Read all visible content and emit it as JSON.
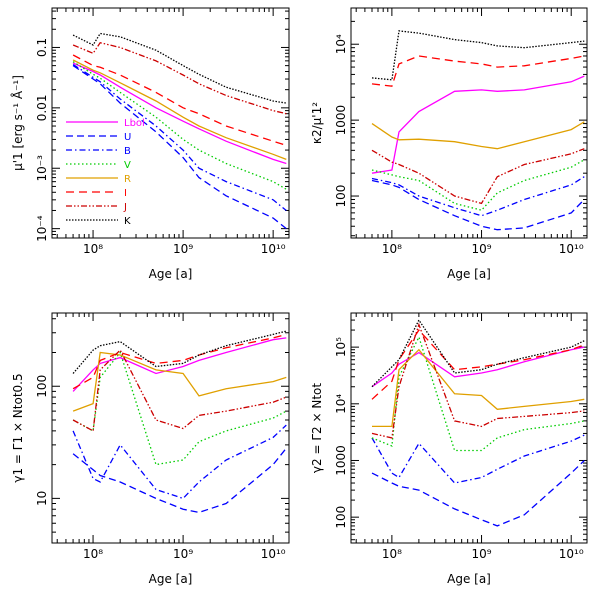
{
  "figure": {
    "series_styles": [
      {
        "name": "L_bol",
        "color": "#ff00ff",
        "dash": ""
      },
      {
        "name": "U",
        "color": "#0000ff",
        "dash": "7,4"
      },
      {
        "name": "B",
        "color": "#0000ff",
        "dash": "6,3,1.5,3"
      },
      {
        "name": "V",
        "color": "#00cc00",
        "dash": "1.5,2.5"
      },
      {
        "name": "R",
        "color": "#e0a000",
        "dash": ""
      },
      {
        "name": "I",
        "color": "#ff0000",
        "dash": "8,5"
      },
      {
        "name": "J",
        "color": "#cc0000",
        "dash": "6,2,1.5,2,1.5,2"
      },
      {
        "name": "K",
        "color": "#000000",
        "dash": "1.5,1.5"
      }
    ],
    "legend": {
      "labels": [
        "L_bol",
        "U",
        "B",
        "V",
        "R",
        "I",
        "J",
        "K"
      ],
      "label_text": [
        "Lbol",
        "U",
        "B",
        "V",
        "R",
        "I",
        "J",
        "K"
      ]
    }
  },
  "chart_data": [
    {
      "type": "line",
      "panel": "top-left",
      "xlabel": "Age [a]",
      "ylabel": "μ'1 [erg s⁻¹ Å⁻¹]",
      "xscale": "log",
      "yscale": "log",
      "xlim": [
        35000000.0,
        15000000000.0
      ],
      "ylim": [
        7e-05,
        0.45
      ],
      "x_ticklabels": [
        "10⁸",
        "10⁹",
        "10¹⁰"
      ],
      "y_ticklabels": [
        "10⁻⁴",
        "10⁻³",
        "0.01",
        "0.1"
      ],
      "x": [
        60000000.0,
        100000000.0,
        120000000.0,
        200000000.0,
        500000000.0,
        1000000000.0,
        1500000000.0,
        3000000000.0,
        10000000000.0,
        14000000000.0
      ],
      "series": [
        {
          "name": "L_bol",
          "values": [
            0.055,
            0.04,
            0.035,
            0.022,
            0.01,
            0.006,
            0.0045,
            0.0028,
            0.0014,
            0.0012
          ]
        },
        {
          "name": "U",
          "values": [
            0.05,
            0.03,
            0.025,
            0.012,
            0.004,
            0.0015,
            0.0007,
            0.00035,
            0.00015,
            0.0001
          ]
        },
        {
          "name": "B",
          "values": [
            0.052,
            0.032,
            0.027,
            0.014,
            0.005,
            0.002,
            0.001,
            0.0006,
            0.0003,
            0.0002
          ]
        },
        {
          "name": "V",
          "values": [
            0.058,
            0.036,
            0.031,
            0.018,
            0.007,
            0.003,
            0.002,
            0.0012,
            0.0006,
            0.00045
          ]
        },
        {
          "name": "R",
          "values": [
            0.062,
            0.042,
            0.038,
            0.026,
            0.013,
            0.007,
            0.005,
            0.0032,
            0.0017,
            0.0014
          ]
        },
        {
          "name": "I",
          "values": [
            0.075,
            0.05,
            0.047,
            0.035,
            0.018,
            0.01,
            0.008,
            0.005,
            0.0028,
            0.0024
          ]
        },
        {
          "name": "J",
          "values": [
            0.11,
            0.08,
            0.12,
            0.1,
            0.06,
            0.035,
            0.025,
            0.016,
            0.009,
            0.008
          ]
        },
        {
          "name": "K",
          "values": [
            0.16,
            0.11,
            0.17,
            0.15,
            0.09,
            0.05,
            0.036,
            0.022,
            0.013,
            0.012
          ]
        }
      ]
    },
    {
      "type": "line",
      "panel": "top-right",
      "xlabel": "Age [a]",
      "ylabel": "κ2/μ'1²",
      "xscale": "log",
      "yscale": "log",
      "xlim": [
        35000000.0,
        15000000000.0
      ],
      "ylim": [
        28,
        30000
      ],
      "x_ticklabels": [
        "10⁸",
        "10⁹",
        "10¹⁰"
      ],
      "y_ticklabels": [
        "100",
        "1000",
        "10⁴"
      ],
      "x": [
        60000000.0,
        100000000.0,
        120000000.0,
        200000000.0,
        500000000.0,
        1000000000.0,
        1500000000.0,
        3000000000.0,
        10000000000.0,
        14000000000.0
      ],
      "series": [
        {
          "name": "L_bol",
          "values": [
            200,
            220,
            700,
            1300,
            2400,
            2500,
            2400,
            2500,
            3200,
            3800
          ]
        },
        {
          "name": "U",
          "values": [
            160,
            140,
            130,
            90,
            55,
            40,
            36,
            38,
            60,
            90
          ]
        },
        {
          "name": "B",
          "values": [
            170,
            150,
            140,
            100,
            70,
            55,
            65,
            90,
            140,
            180
          ]
        },
        {
          "name": "V",
          "values": [
            220,
            190,
            180,
            160,
            80,
            65,
            110,
            160,
            240,
            300
          ]
        },
        {
          "name": "R",
          "values": [
            900,
            600,
            550,
            560,
            520,
            450,
            420,
            520,
            750,
            950
          ]
        },
        {
          "name": "I",
          "values": [
            3000,
            2800,
            5500,
            7000,
            6000,
            5500,
            5000,
            5200,
            6500,
            7000
          ]
        },
        {
          "name": "J",
          "values": [
            400,
            280,
            260,
            200,
            100,
            80,
            180,
            260,
            360,
            420
          ]
        },
        {
          "name": "K",
          "values": [
            3600,
            3400,
            15000,
            14000,
            11500,
            10500,
            9500,
            9000,
            10500,
            11000
          ]
        }
      ]
    },
    {
      "type": "line",
      "panel": "bottom-left",
      "xlabel": "Age [a]",
      "ylabel": "γ1 = Γ1 × Ntot0.5",
      "xscale": "log",
      "yscale": "log",
      "xlim": [
        35000000.0,
        15000000000.0
      ],
      "ylim": [
        4,
        450
      ],
      "x_ticklabels": [
        "10⁸",
        "10⁹",
        "10¹⁰"
      ],
      "y_ticklabels": [
        "10",
        "100"
      ],
      "x": [
        60000000.0,
        100000000.0,
        120000000.0,
        200000000.0,
        500000000.0,
        1000000000.0,
        1500000000.0,
        3000000000.0,
        10000000000.0,
        14000000000.0
      ],
      "series": [
        {
          "name": "L_bol",
          "values": [
            90,
            140,
            160,
            180,
            130,
            150,
            170,
            200,
            260,
            270
          ]
        },
        {
          "name": "U",
          "values": [
            25,
            18,
            16,
            14,
            10,
            8,
            7.5,
            9,
            20,
            28
          ]
        },
        {
          "name": "B",
          "values": [
            40,
            15,
            14,
            30,
            12,
            10,
            14,
            22,
            35,
            45
          ]
        },
        {
          "name": "V",
          "values": [
            50,
            40,
            120,
            200,
            20,
            22,
            32,
            40,
            52,
            60
          ]
        },
        {
          "name": "R",
          "values": [
            60,
            70,
            200,
            190,
            140,
            130,
            82,
            95,
            110,
            120
          ]
        },
        {
          "name": "I",
          "values": [
            95,
            120,
            170,
            200,
            160,
            170,
            190,
            220,
            270,
            290
          ]
        },
        {
          "name": "J",
          "values": [
            50,
            40,
            140,
            210,
            50,
            42,
            55,
            60,
            72,
            80
          ]
        },
        {
          "name": "K",
          "values": [
            130,
            210,
            230,
            250,
            150,
            160,
            190,
            230,
            290,
            310
          ]
        }
      ]
    },
    {
      "type": "line",
      "panel": "bottom-right",
      "xlabel": "Age [a]",
      "ylabel": "γ2 = Γ2 × Ntot",
      "xscale": "log",
      "yscale": "log",
      "xlim": [
        35000000.0,
        15000000000.0
      ],
      "ylim": [
        35,
        400000
      ],
      "x_ticklabels": [
        "10⁸",
        "10⁹",
        "10¹⁰"
      ],
      "y_ticklabels": [
        "100",
        "1000",
        "10⁴",
        "10⁵"
      ],
      "x": [
        60000000.0,
        100000000.0,
        120000000.0,
        200000000.0,
        500000000.0,
        1000000000.0,
        1500000000.0,
        3000000000.0,
        10000000000.0,
        14000000000.0
      ],
      "series": [
        {
          "name": "L_bol",
          "values": [
            20000,
            35000,
            50000,
            80000,
            30000,
            35000,
            40000,
            55000,
            90000,
            100000
          ]
        },
        {
          "name": "U",
          "values": [
            600,
            400,
            350,
            300,
            140,
            90,
            70,
            110,
            600,
            1000
          ]
        },
        {
          "name": "B",
          "values": [
            2500,
            600,
            500,
            2000,
            400,
            500,
            700,
            1200,
            2200,
            2800
          ]
        },
        {
          "name": "V",
          "values": [
            2500,
            1800,
            30000,
            150000,
            1500,
            1500,
            2500,
            3500,
            4500,
            5000
          ]
        },
        {
          "name": "R",
          "values": [
            4000,
            4000,
            40000,
            90000,
            15000,
            14000,
            8000,
            9000,
            11000,
            12000
          ]
        },
        {
          "name": "I",
          "values": [
            12000,
            25000,
            60000,
            200000,
            40000,
            45000,
            50000,
            60000,
            90000,
            110000
          ]
        },
        {
          "name": "J",
          "values": [
            3000,
            2500,
            20000,
            250000,
            5000,
            4000,
            5500,
            6000,
            7000,
            7500
          ]
        },
        {
          "name": "K",
          "values": [
            20000,
            45000,
            60000,
            300000,
            35000,
            40000,
            50000,
            65000,
            100000,
            130000
          ]
        }
      ]
    }
  ]
}
